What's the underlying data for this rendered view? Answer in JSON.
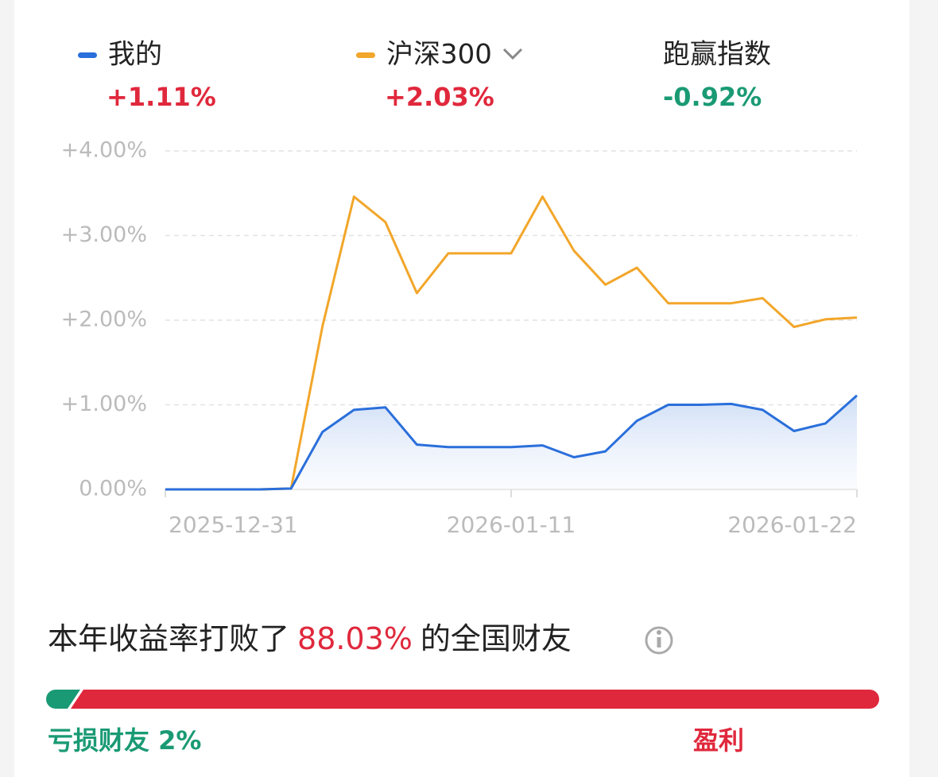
{
  "chart_data": {
    "type": "line",
    "categories": [
      "2025-12-31",
      null,
      null,
      null,
      null,
      null,
      null,
      null,
      null,
      null,
      null,
      "2026-01-11",
      null,
      null,
      null,
      null,
      null,
      null,
      null,
      null,
      null,
      null,
      "2026-01-22"
    ],
    "series": [
      {
        "name": "我的",
        "color": "#2a6fdb",
        "change": "+1.11%",
        "change_color": "#e0283c",
        "area": true,
        "values": [
          0,
          0,
          0,
          0,
          0.01,
          0.68,
          0.94,
          0.97,
          0.53,
          0.5,
          0.5,
          0.5,
          0.52,
          0.38,
          0.45,
          0.81,
          1.0,
          1.0,
          1.01,
          0.94,
          0.69,
          0.78,
          1.11
        ]
      },
      {
        "name": "沪深300",
        "color": "#f2a62a",
        "change": "+2.03%",
        "change_color": "#e0283c",
        "area": false,
        "values": [
          0,
          0,
          0,
          0,
          0.01,
          1.93,
          3.46,
          3.16,
          2.32,
          2.79,
          2.79,
          2.79,
          3.46,
          2.82,
          2.42,
          2.62,
          2.2,
          2.2,
          2.2,
          2.26,
          1.92,
          2.01,
          2.03
        ]
      }
    ],
    "outperform": {
      "name": "跑赢指数",
      "change": "-0.92%",
      "color": "#1a9a74"
    },
    "ylim": [
      0,
      4
    ],
    "yticks": [
      {
        "value": 0,
        "label": "0.00%"
      },
      {
        "value": 1,
        "label": "+1.00%"
      },
      {
        "value": 2,
        "label": "+2.00%"
      },
      {
        "value": 3,
        "label": "+3.00%"
      },
      {
        "value": 4,
        "label": "+4.00%"
      }
    ],
    "grid": true
  },
  "ranking": {
    "prefix": "本年收益率打败了",
    "percent": "88.03%",
    "suffix": "的全国财友"
  },
  "distribution": {
    "loss_share": 2,
    "loss_label": "亏损财友 2%",
    "profit_label": "盈利",
    "loss_color": "#1a9a74",
    "profit_color": "#e0283c"
  }
}
